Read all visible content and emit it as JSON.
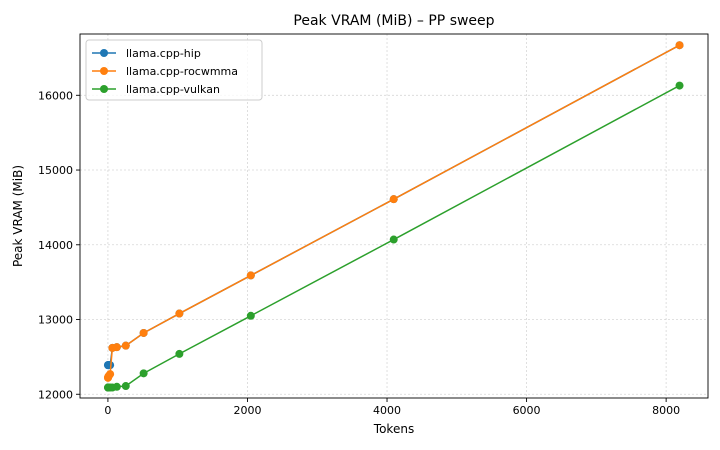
{
  "chart_data": {
    "type": "line",
    "title": "Peak VRAM (MiB) – PP sweep",
    "xlabel": "Tokens",
    "ylabel": "Peak VRAM (MiB)",
    "xlim": [
      -400,
      8600
    ],
    "ylim": [
      11950,
      16820
    ],
    "xticks": [
      0,
      2000,
      4000,
      6000,
      8000
    ],
    "yticks": [
      12000,
      13000,
      14000,
      15000,
      16000
    ],
    "grid": true,
    "legend_position": "top-left",
    "series": [
      {
        "name": "llama.cpp-hip",
        "color": "#1f77b4",
        "x": [
          1,
          2,
          4,
          8,
          16,
          32,
          64,
          128,
          256,
          512,
          1024,
          2048,
          4096,
          8192
        ],
        "y": [
          12390,
          12390,
          12390,
          12390,
          12390,
          12390,
          12620,
          12630,
          12650,
          12820,
          13080,
          13590,
          14610,
          16670
        ]
      },
      {
        "name": "llama.cpp-rocwmma",
        "color": "#ff7f0e",
        "x": [
          1,
          2,
          4,
          8,
          16,
          32,
          64,
          128,
          256,
          512,
          1024,
          2048,
          4096,
          8192
        ],
        "y": [
          12220,
          12225,
          12230,
          12240,
          12250,
          12270,
          12620,
          12630,
          12650,
          12820,
          13080,
          13590,
          14610,
          16670
        ]
      },
      {
        "name": "llama.cpp-vulkan",
        "color": "#2ca02c",
        "x": [
          1,
          2,
          4,
          8,
          16,
          32,
          64,
          128,
          256,
          512,
          1024,
          2048,
          4096,
          8192
        ],
        "y": [
          12090,
          12090,
          12090,
          12090,
          12090,
          12090,
          12090,
          12100,
          12110,
          12280,
          12540,
          13050,
          14070,
          16130
        ]
      }
    ]
  }
}
